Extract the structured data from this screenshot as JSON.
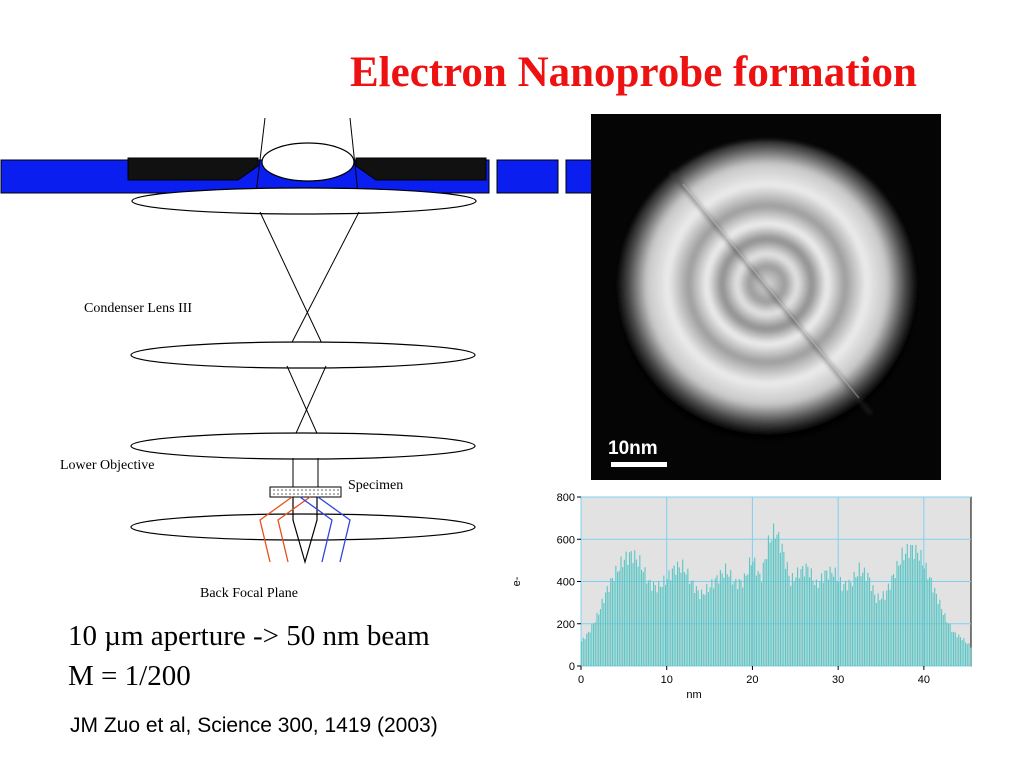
{
  "slide": {
    "title": "Electron Nanoprobe formation",
    "bullets": [
      "10 µm aperture -> 50 nm beam",
      "M = 1/200"
    ],
    "citation": "JM Zuo et al, Science 300, 1419 (2003)"
  },
  "diagram": {
    "labels": {
      "condenser": "Condenser Lens III",
      "objective": "Lower Objective",
      "specimen": "Specimen",
      "bfp": "Back Focal Plane"
    },
    "colors": {
      "column": "#0a1ef0",
      "pole_piece": "#111111",
      "ray": "#000000",
      "diffracted_left": "#e8501e",
      "diffracted_right": "#3344dd"
    }
  },
  "micrograph": {
    "scale_bar": "10nm"
  },
  "chart_data": {
    "type": "bar",
    "xlabel": "nm",
    "ylabel": "e-",
    "xlim": [
      0,
      45.5
    ],
    "ylim": [
      0,
      800
    ],
    "xticks": [
      0,
      10,
      20,
      30,
      40
    ],
    "yticks": [
      0,
      200,
      400,
      600,
      800
    ],
    "grid": true,
    "bar_color": "#5cc6c6",
    "series_points": [
      [
        0,
        120
      ],
      [
        1,
        175
      ],
      [
        2,
        260
      ],
      [
        3,
        380
      ],
      [
        4,
        470
      ],
      [
        5,
        540
      ],
      [
        6,
        570
      ],
      [
        7,
        520
      ],
      [
        8,
        420
      ],
      [
        9,
        400
      ],
      [
        10,
        440
      ],
      [
        11,
        500
      ],
      [
        12,
        505
      ],
      [
        13,
        420
      ],
      [
        14,
        360
      ],
      [
        15,
        400
      ],
      [
        16,
        450
      ],
      [
        17,
        490
      ],
      [
        18,
        420
      ],
      [
        19,
        430
      ],
      [
        20,
        550
      ],
      [
        21,
        440
      ],
      [
        22,
        640
      ],
      [
        22.7,
        690
      ],
      [
        23.5,
        600
      ],
      [
        24.5,
        430
      ],
      [
        25.5,
        480
      ],
      [
        26.5,
        500
      ],
      [
        27.5,
        410
      ],
      [
        28.5,
        470
      ],
      [
        29.5,
        480
      ],
      [
        30.5,
        410
      ],
      [
        31.5,
        420
      ],
      [
        32.5,
        490
      ],
      [
        33.5,
        460
      ],
      [
        34.5,
        340
      ],
      [
        35.5,
        360
      ],
      [
        36.5,
        460
      ],
      [
        37.5,
        560
      ],
      [
        38.5,
        600
      ],
      [
        39.5,
        570
      ],
      [
        40.5,
        470
      ],
      [
        41.5,
        360
      ],
      [
        42.5,
        250
      ],
      [
        43.5,
        170
      ],
      [
        44.5,
        140
      ],
      [
        45.5,
        100
      ]
    ]
  }
}
